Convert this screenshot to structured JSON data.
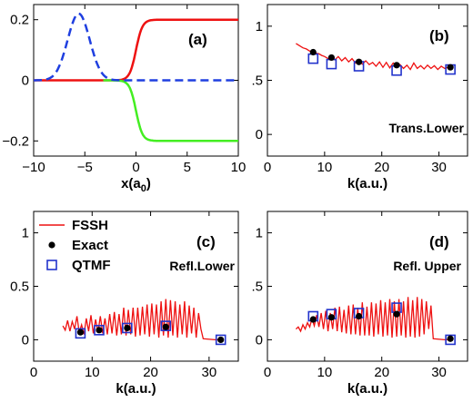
{
  "colors": {
    "fssh": "#ee1111",
    "exact": "#000000",
    "qtmf": "#2233cc",
    "green": "#44ee22",
    "blue": "#1f3fe0",
    "red": "#ee1111"
  },
  "chart_data": [
    {
      "panel": "(a)",
      "type": "line",
      "xlabel": "x(a",
      "xlabel_sub": "0",
      "xlabel_close": ")",
      "xlim": [
        -10,
        10
      ],
      "ylim": [
        -0.25,
        0.25
      ],
      "xticks": [
        -10,
        -5,
        0,
        5,
        10
      ],
      "xtick_labels": [
        "−10",
        "−5",
        "0",
        "5",
        "10"
      ],
      "yticks": [
        -0.2,
        0,
        0.2
      ],
      "ytick_labels": [
        "−0.2",
        "0",
        "0.2"
      ],
      "series": [
        {
          "color": "red",
          "style": "solid",
          "function": "0.1*(1+tanh(1.6*x))",
          "x_range": [
            -10,
            10
          ]
        },
        {
          "color": "green",
          "style": "solid",
          "function": "-0.1*(1+tanh(1.6*x))",
          "x_range": [
            -3.2,
            10
          ]
        },
        {
          "color": "blue",
          "style": "dashed",
          "function": "0.22*exp(-0.43*(x+5.6)^2)",
          "x_range": [
            -10,
            10
          ]
        }
      ]
    },
    {
      "panel": "(b)",
      "type": "line+scatter",
      "annotation": "Trans.Lower",
      "xlabel": "k(a.u.)",
      "xlim": [
        0,
        35
      ],
      "ylim": [
        -0.2,
        1.2
      ],
      "xticks": [
        0,
        10,
        20,
        30
      ],
      "xtick_labels": [
        "0",
        "10",
        "20",
        "30"
      ],
      "yticks": [
        0,
        0.5,
        1
      ],
      "ytick_labels": [
        "0",
        ".5",
        "1"
      ],
      "fssh": {
        "x": [
          5.0,
          5.6,
          6.2,
          6.8,
          7.4,
          8.0,
          8.5,
          9.0,
          9.5,
          10.0,
          10.6,
          11.2,
          11.8,
          12.4,
          13.0,
          13.6,
          14.2,
          14.8,
          15.4,
          16.0,
          16.6,
          17.2,
          17.8,
          18.4,
          19.0,
          19.6,
          20.2,
          20.8,
          21.4,
          22.0,
          22.6,
          23.2,
          23.8,
          24.4,
          25.0,
          25.6,
          26.2,
          26.8,
          27.4,
          28.0,
          28.6,
          29.2,
          29.8,
          30.4,
          31.0,
          31.6,
          32.0
        ],
        "y": [
          0.84,
          0.82,
          0.8,
          0.79,
          0.77,
          0.76,
          0.75,
          0.745,
          0.73,
          0.72,
          0.7,
          0.71,
          0.69,
          0.72,
          0.68,
          0.71,
          0.67,
          0.7,
          0.66,
          0.69,
          0.65,
          0.68,
          0.645,
          0.665,
          0.63,
          0.67,
          0.62,
          0.665,
          0.615,
          0.66,
          0.625,
          0.645,
          0.61,
          0.64,
          0.6,
          0.66,
          0.61,
          0.635,
          0.605,
          0.64,
          0.61,
          0.635,
          0.6,
          0.63,
          0.61,
          0.62,
          0.61
        ]
      },
      "exact": {
        "x": [
          8.0,
          11.2,
          16.0,
          22.6,
          32.0
        ],
        "y": [
          0.76,
          0.71,
          0.67,
          0.64,
          0.62
        ]
      },
      "qtmf": {
        "x": [
          8.0,
          11.2,
          16.0,
          22.6,
          32.0
        ],
        "y": [
          0.7,
          0.65,
          0.63,
          0.59,
          0.6
        ]
      }
    },
    {
      "panel": "(c)",
      "type": "line+scatter",
      "annotation": "Refl.Lower",
      "xlabel": "k(a.u.)",
      "xlim": [
        0,
        35
      ],
      "ylim": [
        -0.2,
        1.2
      ],
      "xticks": [
        0,
        10,
        20,
        30
      ],
      "xtick_labels": [
        "0",
        "10",
        "20",
        "30"
      ],
      "yticks": [
        0,
        0.5,
        1
      ],
      "ytick_labels": [
        "0",
        "0.5",
        "1"
      ],
      "legend": {
        "placement": "top-left",
        "entries": [
          "FSSH",
          "Exact",
          "QTMF"
        ]
      },
      "fssh": {
        "x": [
          5.0,
          5.4,
          5.8,
          6.2,
          6.6,
          7.0,
          7.4,
          7.8,
          8.2,
          8.6,
          9.0,
          9.4,
          9.8,
          10.2,
          10.6,
          11.0,
          11.4,
          11.8,
          12.2,
          12.6,
          13.0,
          13.4,
          13.8,
          14.2,
          14.6,
          15.0,
          15.4,
          15.8,
          16.2,
          16.6,
          17.0,
          17.4,
          17.8,
          18.2,
          18.6,
          19.0,
          19.4,
          19.8,
          20.2,
          20.6,
          21.0,
          21.4,
          21.8,
          22.2,
          22.6,
          23.0,
          23.4,
          23.8,
          24.2,
          24.6,
          25.0,
          25.4,
          25.8,
          26.2,
          26.6,
          27.0,
          27.4,
          27.8,
          28.2,
          28.6,
          29.0,
          31.0,
          32.0
        ],
        "y": [
          0.13,
          0.09,
          0.18,
          0.08,
          0.17,
          0.1,
          0.22,
          0.07,
          0.14,
          0.05,
          0.2,
          0.08,
          0.23,
          0.06,
          0.19,
          0.07,
          0.22,
          0.06,
          0.2,
          0.05,
          0.24,
          0.06,
          0.26,
          0.04,
          0.24,
          0.05,
          0.3,
          0.04,
          0.28,
          0.05,
          0.3,
          0.03,
          0.3,
          0.04,
          0.31,
          0.05,
          0.33,
          0.03,
          0.34,
          0.05,
          0.33,
          0.02,
          0.36,
          0.04,
          0.38,
          0.02,
          0.37,
          0.04,
          0.36,
          0.02,
          0.33,
          0.05,
          0.36,
          0.02,
          0.32,
          0.06,
          0.3,
          0.02,
          0.25,
          0.1,
          0.01,
          0.0,
          0.0
        ]
      },
      "exact": {
        "x": [
          8.0,
          11.2,
          16.0,
          22.6,
          32.0
        ],
        "y": [
          0.07,
          0.09,
          0.11,
          0.12,
          0.0
        ]
      },
      "qtmf": {
        "x": [
          8.0,
          11.2,
          16.0,
          22.6,
          32.0
        ],
        "y": [
          0.06,
          0.09,
          0.11,
          0.13,
          0.0
        ]
      }
    },
    {
      "panel": "(d)",
      "type": "line+scatter",
      "annotation": "Refl. Upper",
      "xlabel": "k(a.u.)",
      "xlim": [
        0,
        35
      ],
      "ylim": [
        -0.2,
        1.2
      ],
      "xticks": [
        0,
        10,
        20,
        30
      ],
      "xtick_labels": [
        "0",
        "10",
        "20",
        "30"
      ],
      "yticks": [
        0,
        0.5,
        1
      ],
      "ytick_labels": [
        "0",
        ".5",
        "1"
      ],
      "fssh": {
        "x": [
          5.0,
          5.4,
          5.8,
          6.2,
          6.6,
          7.0,
          7.4,
          7.8,
          8.2,
          8.6,
          9.0,
          9.4,
          9.8,
          10.2,
          10.6,
          11.0,
          11.4,
          11.8,
          12.2,
          12.6,
          13.0,
          13.4,
          13.8,
          14.2,
          14.6,
          15.0,
          15.4,
          15.8,
          16.2,
          16.6,
          17.0,
          17.4,
          17.8,
          18.2,
          18.6,
          19.0,
          19.4,
          19.8,
          20.2,
          20.6,
          21.0,
          21.4,
          21.8,
          22.2,
          22.6,
          23.0,
          23.4,
          23.8,
          24.2,
          24.6,
          25.0,
          25.4,
          25.8,
          26.2,
          26.6,
          27.0,
          27.4,
          27.8,
          28.2,
          28.6,
          29.0,
          31.0,
          32.0
        ],
        "y": [
          0.1,
          0.12,
          0.08,
          0.14,
          0.1,
          0.16,
          0.12,
          0.2,
          0.13,
          0.23,
          0.12,
          0.25,
          0.1,
          0.27,
          0.08,
          0.25,
          0.1,
          0.3,
          0.08,
          0.31,
          0.07,
          0.28,
          0.06,
          0.32,
          0.05,
          0.33,
          0.05,
          0.3,
          0.04,
          0.35,
          0.04,
          0.31,
          0.04,
          0.35,
          0.03,
          0.34,
          0.05,
          0.37,
          0.03,
          0.35,
          0.04,
          0.38,
          0.02,
          0.36,
          0.03,
          0.38,
          0.04,
          0.36,
          0.02,
          0.4,
          0.03,
          0.37,
          0.02,
          0.4,
          0.03,
          0.38,
          0.05,
          0.36,
          0.1,
          0.32,
          0.01,
          0.0,
          0.0
        ]
      },
      "exact": {
        "x": [
          8.0,
          11.2,
          16.0,
          22.6,
          32.0
        ],
        "y": [
          0.19,
          0.21,
          0.22,
          0.24,
          0.01
        ]
      },
      "qtmf": {
        "x": [
          8.0,
          11.2,
          16.0,
          22.6,
          32.0
        ],
        "y": [
          0.22,
          0.24,
          0.25,
          0.3,
          0.0
        ]
      }
    }
  ]
}
